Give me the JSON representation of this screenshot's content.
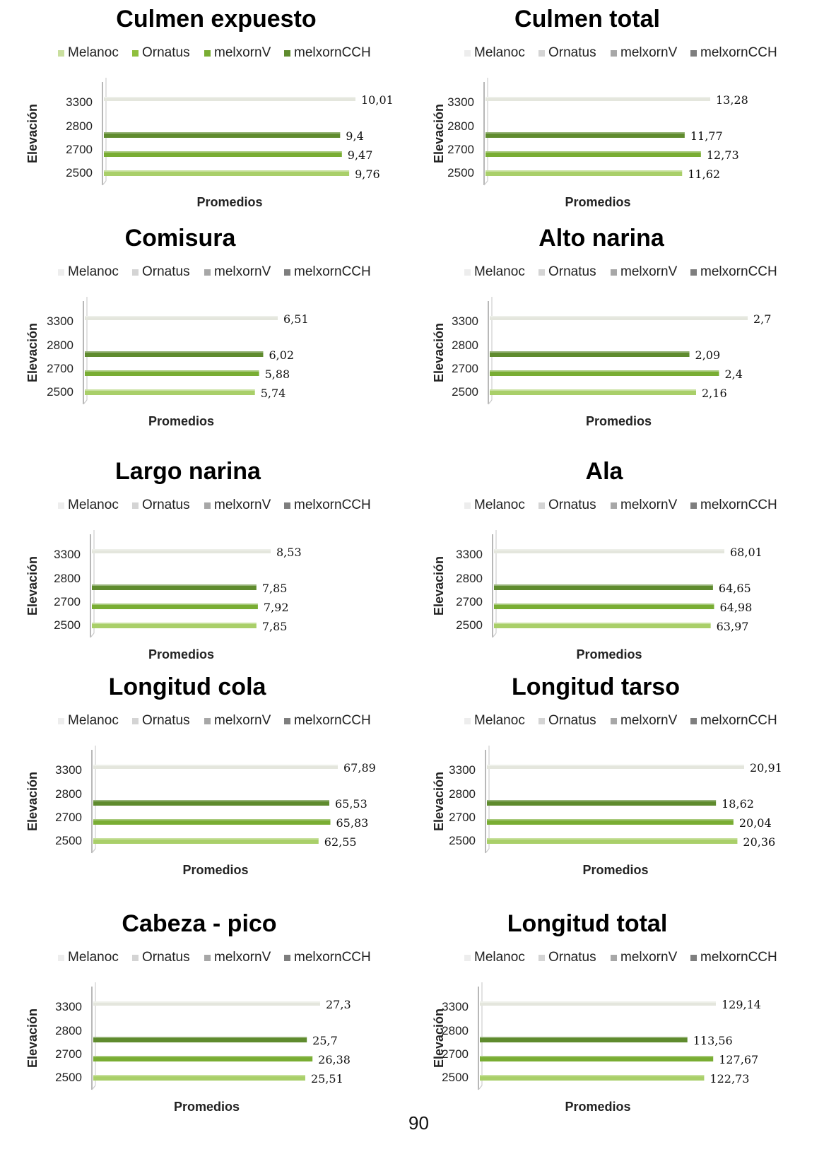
{
  "page": {
    "number": "90"
  },
  "colors": {
    "Melanoc": "#c9df9e",
    "Ornatus": "#8fbf3e",
    "melxornV": "#79ad33",
    "melxornCCH": "#5f8b2e",
    "Melanoc_3300": "#e4e6dd"
  },
  "chart_data": [
    {
      "type": "bar",
      "title": "Culmen expuesto",
      "legend": [
        "Melanoc",
        "Ornatus",
        "melxornV",
        "melxornCCH"
      ],
      "legend_style": "colored",
      "categories": [
        "3300",
        "2800",
        "2700",
        "2500"
      ],
      "values": [
        10.01,
        9.4,
        9.47,
        9.76
      ],
      "data_labels": [
        "10,01",
        "9,4",
        "9,47",
        "9,76"
      ],
      "bar_colors": [
        "#e4e6dd",
        "#5f8b2e",
        "#79ad33",
        "#a9cf69"
      ],
      "xlabel": "Promedios",
      "ylabel": "Elevación",
      "xlim": [
        0,
        10.01
      ]
    },
    {
      "type": "bar",
      "title": "Culmen total",
      "legend": [
        "Melanoc",
        "Ornatus",
        "melxornV",
        "melxornCCH"
      ],
      "legend_style": "gray",
      "categories": [
        "3300",
        "2800",
        "2700",
        "2500"
      ],
      "values": [
        13.28,
        11.77,
        12.73,
        11.62
      ],
      "data_labels": [
        "13,28",
        "11,77",
        "12,73",
        "11,62"
      ],
      "bar_colors": [
        "#e4e6dd",
        "#5f8b2e",
        "#79ad33",
        "#a9cf69"
      ],
      "xlabel": "Promedios",
      "ylabel": "Elevación",
      "xlim": [
        0,
        13.28
      ]
    },
    {
      "type": "bar",
      "title": "Comisura",
      "legend": [
        "Melanoc",
        "Ornatus",
        "melxornV",
        "melxornCCH"
      ],
      "legend_style": "gray",
      "categories": [
        "3300",
        "2800",
        "2700",
        "2500"
      ],
      "values": [
        6.51,
        6.02,
        5.88,
        5.74
      ],
      "data_labels": [
        "6,51",
        "6,02",
        "5,88",
        "5,74"
      ],
      "bar_colors": [
        "#e4e6dd",
        "#5f8b2e",
        "#79ad33",
        "#a9cf69"
      ],
      "xlabel": "Promedios",
      "ylabel": "Elevación",
      "xlim": [
        0,
        6.51
      ]
    },
    {
      "type": "bar",
      "title": "Alto narina",
      "legend": [
        "Melanoc",
        "Ornatus",
        "melxornV",
        "melxornCCH"
      ],
      "legend_style": "gray",
      "categories": [
        "3300",
        "2800",
        "2700",
        "2500"
      ],
      "values": [
        2.7,
        2.09,
        2.4,
        2.16
      ],
      "data_labels": [
        "2,7",
        "2,09",
        "2,4",
        "2,16"
      ],
      "bar_colors": [
        "#e4e6dd",
        "#5f8b2e",
        "#79ad33",
        "#a9cf69"
      ],
      "xlabel": "Promedios",
      "ylabel": "Elevación",
      "xlim": [
        0,
        2.7
      ]
    },
    {
      "type": "bar",
      "title": "Largo narina",
      "legend": [
        "Melanoc",
        "Ornatus",
        "melxornV",
        "melxornCCH"
      ],
      "legend_style": "gray",
      "categories": [
        "3300",
        "2800",
        "2700",
        "2500"
      ],
      "values": [
        8.53,
        7.85,
        7.92,
        7.85
      ],
      "data_labels": [
        "8,53",
        "7,85",
        "7,92",
        "7,85"
      ],
      "bar_colors": [
        "#e4e6dd",
        "#5f8b2e",
        "#79ad33",
        "#a9cf69"
      ],
      "xlabel": "Promedios",
      "ylabel": "Elevación",
      "xlim": [
        0,
        8.53
      ]
    },
    {
      "type": "bar",
      "title": "Ala",
      "legend": [
        "Melanoc",
        "Ornatus",
        "melxornV",
        "melxornCCH"
      ],
      "legend_style": "gray",
      "categories": [
        "3300",
        "2800",
        "2700",
        "2500"
      ],
      "values": [
        68.01,
        64.65,
        64.98,
        63.97
      ],
      "data_labels": [
        "68,01",
        "64,65",
        "64,98",
        "63,97"
      ],
      "bar_colors": [
        "#e4e6dd",
        "#5f8b2e",
        "#79ad33",
        "#a9cf69"
      ],
      "xlabel": "Promedios",
      "ylabel": "Elevación",
      "xlim": [
        0,
        68.01
      ]
    },
    {
      "type": "bar",
      "title": "Longitud cola",
      "legend": [
        "Melanoc",
        "Ornatus",
        "melxornV",
        "melxornCCH"
      ],
      "legend_style": "gray",
      "categories": [
        "3300",
        "2800",
        "2700",
        "2500"
      ],
      "values": [
        67.89,
        65.53,
        65.83,
        62.55
      ],
      "data_labels": [
        "67,89",
        "65,53",
        "65,83",
        "62,55"
      ],
      "bar_colors": [
        "#e4e6dd",
        "#5f8b2e",
        "#79ad33",
        "#a9cf69"
      ],
      "xlabel": "Promedios",
      "ylabel": "Elevación",
      "xlim": [
        0,
        67.89
      ]
    },
    {
      "type": "bar",
      "title": "Longitud tarso",
      "legend": [
        "Melanoc",
        "Ornatus",
        "melxornV",
        "melxornCCH"
      ],
      "legend_style": "gray",
      "categories": [
        "3300",
        "2800",
        "2700",
        "2500"
      ],
      "values": [
        20.91,
        18.62,
        20.04,
        20.36
      ],
      "data_labels": [
        "20,91",
        "18,62",
        "20,04",
        "20,36"
      ],
      "bar_colors": [
        "#e4e6dd",
        "#5f8b2e",
        "#79ad33",
        "#a9cf69"
      ],
      "xlabel": "Promedios",
      "ylabel": "Elevación",
      "xlim": [
        0,
        20.91
      ]
    },
    {
      "type": "bar",
      "title": "Cabeza - pico",
      "legend": [
        "Melanoc",
        "Ornatus",
        "melxornV",
        "melxornCCH"
      ],
      "legend_style": "gray",
      "categories": [
        "3300",
        "2800",
        "2700",
        "2500"
      ],
      "values": [
        27.3,
        25.7,
        26.38,
        25.51
      ],
      "data_labels": [
        "27,3",
        "25,7",
        "26,38",
        "25,51"
      ],
      "bar_colors": [
        "#e4e6dd",
        "#5f8b2e",
        "#79ad33",
        "#a9cf69"
      ],
      "xlabel": "Promedios",
      "ylabel": "Elevación",
      "xlim": [
        0,
        27.3
      ]
    },
    {
      "type": "bar",
      "title": "Longitud total",
      "legend": [
        "Melanoc",
        "Ornatus",
        "melxornV",
        "melxornCCH"
      ],
      "legend_style": "gray",
      "categories": [
        "3300",
        "2800",
        "2700",
        "2500"
      ],
      "values": [
        129.14,
        113.56,
        127.67,
        122.73
      ],
      "data_labels": [
        "129,14",
        "113,56",
        "127,67",
        "122,73"
      ],
      "bar_colors": [
        "#e4e6dd",
        "#5f8b2e",
        "#79ad33",
        "#a9cf69"
      ],
      "xlabel": "Promedios",
      "ylabel": "Elevación",
      "xlim": [
        0,
        129.14
      ]
    }
  ]
}
